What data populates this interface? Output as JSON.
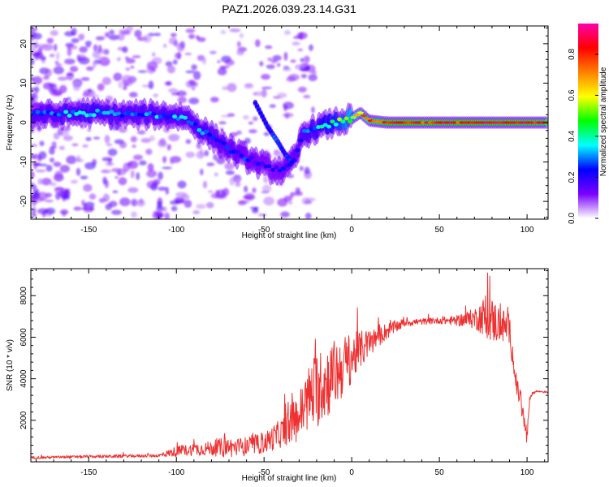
{
  "figure_title": "PAZ1.2026.039.23.14.G31",
  "chart_data": [
    {
      "type": "heatmap",
      "title": "PAZ1.2026.039.23.14.G31",
      "xlabel": "Height of straight line (km)",
      "ylabel": "Frequency (Hz)",
      "xlim": [
        -183,
        112
      ],
      "ylim": [
        -24.5,
        24.5
      ],
      "xticks": [
        -150,
        -100,
        -50,
        0,
        50,
        100
      ],
      "yticks": [
        -20,
        -10,
        0,
        10,
        20
      ],
      "colorbar": {
        "label": "Normalized spectral amplitude",
        "range": [
          0,
          0.95
        ],
        "ticks": [
          0.0,
          0.2,
          0.4,
          0.6,
          0.8
        ],
        "colormap": [
          "#ffffff",
          "#7a00ff",
          "#0000ff",
          "#00ffff",
          "#00ff00",
          "#ffff00",
          "#ff8000",
          "#ff0000",
          "#ff00aa"
        ]
      },
      "ridge": {
        "x": [
          -170,
          -150,
          -130,
          -110,
          -95,
          -85,
          -75,
          -65,
          -55,
          -45,
          -38,
          -32,
          -28,
          -20,
          -10,
          0,
          5,
          10,
          20,
          50,
          80,
          100,
          112
        ],
        "y": [
          2,
          2.5,
          2,
          2,
          1.5,
          -2,
          -5,
          -8,
          -10,
          -12,
          -12,
          -9,
          -3,
          -1.5,
          0,
          1,
          2.5,
          0.5,
          0,
          0,
          0,
          0,
          0
        ],
        "amplitude": [
          0.3,
          0.35,
          0.3,
          0.3,
          0.3,
          0.32,
          0.28,
          0.25,
          0.22,
          0.2,
          0.22,
          0.25,
          0.3,
          0.35,
          0.45,
          0.6,
          0.7,
          0.75,
          0.85,
          0.85,
          0.85,
          0.85,
          0.8
        ]
      },
      "secondary_ridge": {
        "x": [
          -55,
          -48,
          -42,
          -38,
          -34
        ],
        "y": [
          5,
          -1,
          -5,
          -8,
          -10
        ]
      }
    },
    {
      "type": "line",
      "xlabel": "Height of straight line (km)",
      "ylabel": "SNR (10 * v/v)",
      "xlim": [
        -183,
        112
      ],
      "ylim": [
        0,
        9300
      ],
      "xticks": [
        -150,
        -100,
        -50,
        0,
        50,
        100
      ],
      "yticks": [
        2000,
        4000,
        6000,
        8000
      ],
      "series": [
        {
          "name": "SNR",
          "color": "#ee3030",
          "envelope_x": [
            -183,
            -150,
            -110,
            -100,
            -90,
            -80,
            -72,
            -65,
            -55,
            -50,
            -40,
            -30,
            -25,
            -20,
            -15,
            -10,
            -5,
            0,
            5,
            10,
            15,
            20,
            25,
            30,
            40,
            50,
            60,
            70,
            75,
            80,
            85,
            90,
            92,
            94,
            96,
            98,
            100,
            102,
            105,
            112
          ],
          "envelope_y": [
            200,
            250,
            300,
            500,
            600,
            650,
            700,
            700,
            800,
            900,
            1400,
            2200,
            3000,
            3500,
            3800,
            4200,
            4600,
            5000,
            5400,
            5700,
            6000,
            6300,
            6500,
            6700,
            6750,
            6800,
            6800,
            6900,
            7000,
            6800,
            6600,
            6400,
            5000,
            3500,
            3200,
            2000,
            1200,
            3200,
            3400,
            3350
          ],
          "jitter_y": [
            60,
            70,
            80,
            250,
            300,
            350,
            500,
            450,
            450,
            500,
            700,
            1200,
            1600,
            1900,
            1800,
            1700,
            1500,
            1200,
            900,
            700,
            500,
            400,
            300,
            200,
            150,
            150,
            250,
            500,
            900,
            1100,
            900,
            700,
            600,
            400,
            700,
            600,
            500,
            100,
            50,
            40
          ]
        }
      ]
    }
  ]
}
